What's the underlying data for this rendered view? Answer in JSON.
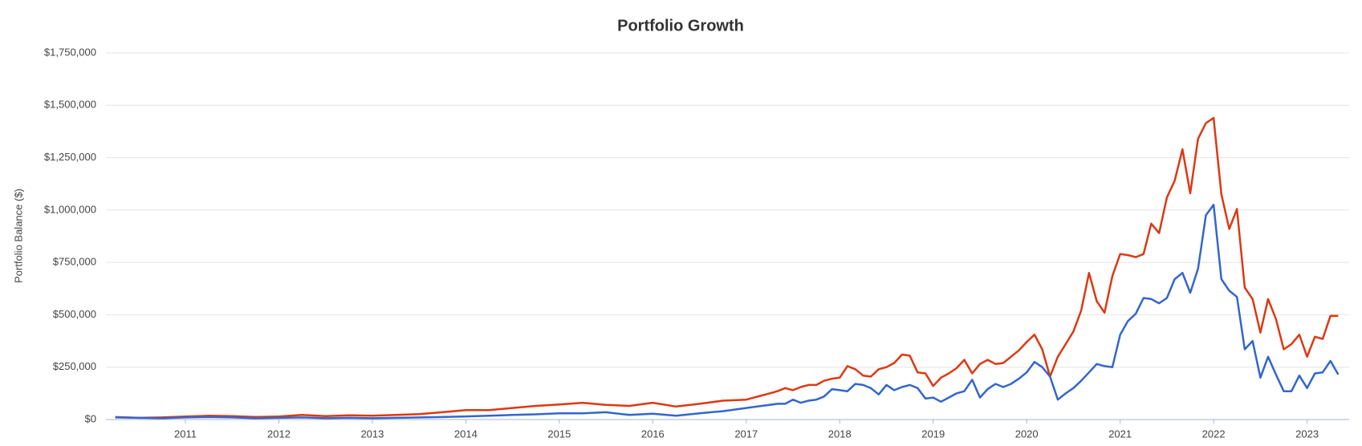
{
  "chart_data": {
    "type": "line",
    "title": "Portfolio Growth",
    "y_label": "Portfolio Balance ($)",
    "x": [
      2010.25,
      2010.5,
      2010.75,
      2011,
      2011.25,
      2011.5,
      2011.75,
      2012,
      2012.25,
      2012.5,
      2012.75,
      2013,
      2013.25,
      2013.5,
      2013.75,
      2014,
      2014.25,
      2014.5,
      2014.75,
      2015,
      2015.25,
      2015.5,
      2015.75,
      2016,
      2016.25,
      2016.5,
      2016.75,
      2017,
      2017.083,
      2017.167,
      2017.25,
      2017.333,
      2017.417,
      2017.5,
      2017.583,
      2017.667,
      2017.75,
      2017.833,
      2017.917,
      2018,
      2018.083,
      2018.167,
      2018.25,
      2018.333,
      2018.417,
      2018.5,
      2018.583,
      2018.667,
      2018.75,
      2018.833,
      2018.917,
      2019,
      2019.083,
      2019.167,
      2019.25,
      2019.333,
      2019.417,
      2019.5,
      2019.583,
      2019.667,
      2019.75,
      2019.833,
      2019.917,
      2020,
      2020.083,
      2020.167,
      2020.25,
      2020.333,
      2020.417,
      2020.5,
      2020.583,
      2020.667,
      2020.75,
      2020.833,
      2020.917,
      2021,
      2021.083,
      2021.167,
      2021.25,
      2021.333,
      2021.417,
      2021.5,
      2021.583,
      2021.667,
      2021.75,
      2021.833,
      2021.917,
      2022,
      2022.083,
      2022.167,
      2022.25,
      2022.333,
      2022.417,
      2022.5,
      2022.583,
      2022.667,
      2022.75,
      2022.833,
      2022.917,
      2023,
      2023.083,
      2023.167,
      2023.25,
      2023.333
    ],
    "series": [
      {
        "color": "#dc3912",
        "values": [
          12000,
          8000,
          10000,
          14000,
          18000,
          16000,
          12000,
          14000,
          22000,
          16000,
          20000,
          18000,
          22000,
          26000,
          35000,
          45000,
          45000,
          55000,
          65000,
          72000,
          80000,
          70000,
          65000,
          80000,
          62000,
          75000,
          90000,
          95000,
          105000,
          115000,
          125000,
          135000,
          150000,
          140000,
          155000,
          165000,
          165000,
          185000,
          195000,
          200000,
          255000,
          240000,
          210000,
          205000,
          240000,
          250000,
          270000,
          310000,
          305000,
          225000,
          220000,
          160000,
          200000,
          220000,
          245000,
          285000,
          220000,
          265000,
          285000,
          265000,
          270000,
          300000,
          330000,
          370000,
          405000,
          335000,
          205000,
          300000,
          360000,
          420000,
          520000,
          700000,
          565000,
          510000,
          685000,
          790000,
          785000,
          775000,
          790000,
          935000,
          890000,
          1060000,
          1140000,
          1290000,
          1080000,
          1340000,
          1415000,
          1440000,
          1075000,
          910000,
          1005000,
          630000,
          575000,
          415000,
          575000,
          480000,
          335000,
          360000,
          405000,
          300000,
          395000,
          385000,
          495000,
          495000
        ]
      },
      {
        "color": "#3366cc",
        "values": [
          10000,
          8000,
          6000,
          10000,
          12000,
          10000,
          6000,
          8000,
          10000,
          6000,
          8000,
          6000,
          8000,
          10000,
          12000,
          15000,
          18000,
          22000,
          25000,
          30000,
          30000,
          35000,
          22000,
          28000,
          18000,
          30000,
          40000,
          55000,
          60000,
          65000,
          70000,
          75000,
          75000,
          95000,
          80000,
          90000,
          95000,
          110000,
          145000,
          140000,
          135000,
          170000,
          165000,
          150000,
          120000,
          165000,
          140000,
          155000,
          165000,
          150000,
          100000,
          105000,
          85000,
          105000,
          125000,
          135000,
          190000,
          105000,
          145000,
          170000,
          155000,
          170000,
          195000,
          225000,
          275000,
          250000,
          205000,
          95000,
          125000,
          150000,
          185000,
          225000,
          265000,
          255000,
          250000,
          405000,
          470000,
          505000,
          580000,
          575000,
          555000,
          580000,
          670000,
          700000,
          605000,
          720000,
          975000,
          1025000,
          670000,
          615000,
          585000,
          335000,
          375000,
          200000,
          300000,
          215000,
          135000,
          135000,
          210000,
          150000,
          220000,
          225000,
          280000,
          215000
        ]
      }
    ],
    "xlim": [
      2010.15,
      2023.45
    ],
    "xticks": [
      2011,
      2012,
      2013,
      2014,
      2015,
      2016,
      2017,
      2018,
      2019,
      2020,
      2021,
      2022,
      2023
    ],
    "ylim": [
      0,
      1750000
    ],
    "yticks": [
      {
        "value": 0,
        "label": "$0"
      },
      {
        "value": 250000,
        "label": "$250,000"
      },
      {
        "value": 500000,
        "label": "$500,000"
      },
      {
        "value": 750000,
        "label": "$750,000"
      },
      {
        "value": 1000000,
        "label": "$1,000,000"
      },
      {
        "value": 1250000,
        "label": "$1,250,000"
      },
      {
        "value": 1500000,
        "label": "$1,500,000"
      },
      {
        "value": 1750000,
        "label": "$1,750,000"
      }
    ],
    "grid": true
  }
}
